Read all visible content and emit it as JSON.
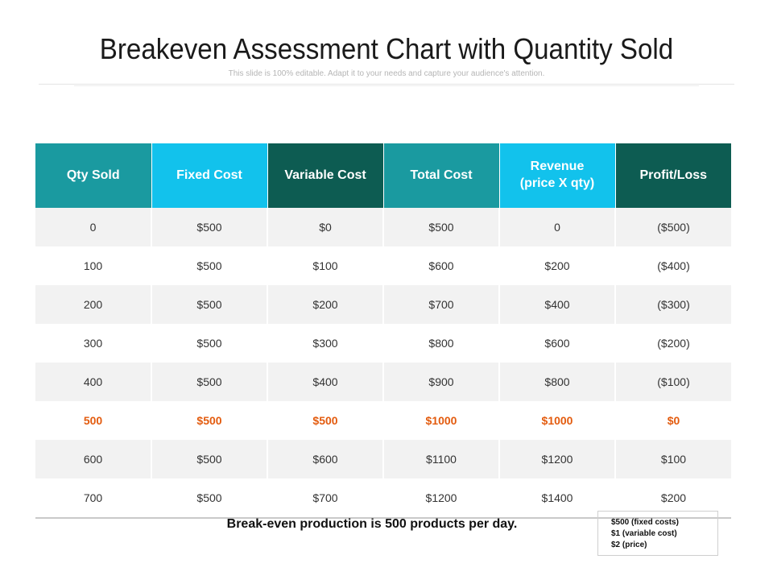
{
  "title": "Breakeven Assessment Chart with Quantity Sold",
  "subtitle": "This slide is 100% editable. Adapt it to your needs and capture your audience's attention.",
  "colors": {
    "header": [
      "#1a9aa0",
      "#12c2ec",
      "#0d5c52",
      "#1a9aa0",
      "#12c2ec",
      "#0d5c52"
    ],
    "highlight_text": "#e35b0e",
    "row_shade": "#f2f2f2"
  },
  "table": {
    "headers": [
      "Qty Sold",
      "Fixed Cost",
      "Variable Cost",
      "Total Cost",
      "Revenue\n(price X qty)",
      "Profit/Loss"
    ],
    "rows": [
      [
        "0",
        "$500",
        "$0",
        "$500",
        "0",
        "($500)"
      ],
      [
        "100",
        "$500",
        "$100",
        "$600",
        "$200",
        "($400)"
      ],
      [
        "200",
        "$500",
        "$200",
        "$700",
        "$400",
        "($300)"
      ],
      [
        "300",
        "$500",
        "$300",
        "$800",
        "$600",
        "($200)"
      ],
      [
        "400",
        "$500",
        "$400",
        "$900",
        "$800",
        "($100)"
      ],
      [
        "500",
        "$500",
        "$500",
        "$1000",
        "$1000",
        "$0"
      ],
      [
        "600",
        "$500",
        "$600",
        "$1100",
        "$1200",
        "$100"
      ],
      [
        "700",
        "$500",
        "$700",
        "$1200",
        "$1400",
        "$200"
      ]
    ],
    "highlight_row": 5
  },
  "note": "Break-even production is 500 products per day.",
  "legend": [
    "$500 (fixed costs)",
    "$1 (variable cost)",
    "$2 (price)"
  ]
}
